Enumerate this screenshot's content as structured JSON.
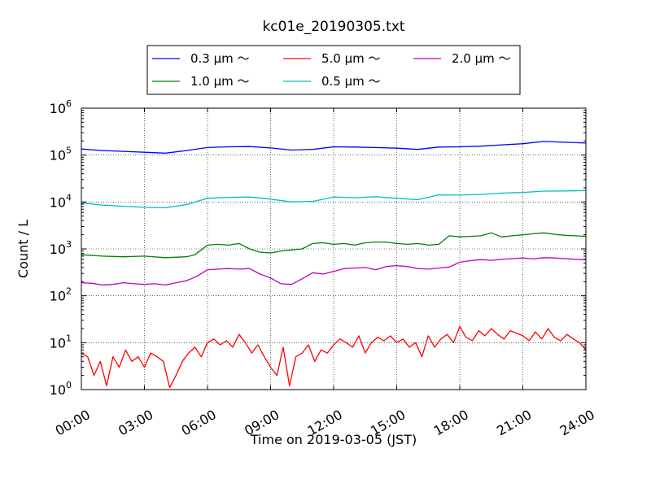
{
  "chart_data": {
    "type": "line",
    "title": "kc01e_20190305.txt",
    "xlabel": "Time on 2019-03-05 (JST)",
    "ylabel": "Count / L",
    "yscale": "log",
    "ylim": [
      1,
      1000000
    ],
    "xlim_hours": [
      0,
      24
    ],
    "x_ticks": [
      "00:00",
      "03:00",
      "06:00",
      "09:00",
      "12:00",
      "15:00",
      "18:00",
      "21:00",
      "24:00"
    ],
    "y_ticks": [
      {
        "base": "10",
        "exp": "0"
      },
      {
        "base": "10",
        "exp": "1"
      },
      {
        "base": "10",
        "exp": "2"
      },
      {
        "base": "10",
        "exp": "3"
      },
      {
        "base": "10",
        "exp": "4"
      },
      {
        "base": "10",
        "exp": "5"
      },
      {
        "base": "10",
        "exp": "6"
      }
    ],
    "grid": true,
    "legend_position": "top-center",
    "legend": [
      {
        "label": "0.3 μm ～",
        "color": "#0000ff"
      },
      {
        "label": "1.0 μm ～",
        "color": "#008000"
      },
      {
        "label": "5.0 μm ～",
        "color": "#ff0000"
      },
      {
        "label": "0.5 μm ～",
        "color": "#00bfbf"
      },
      {
        "label": "2.0 μm ～",
        "color": "#bf00bf"
      }
    ],
    "series": [
      {
        "name": "0.3 μm ～",
        "color": "#0000ff",
        "x": [
          0,
          1,
          2,
          3,
          4,
          5,
          6,
          7,
          8,
          9,
          10,
          11,
          12,
          13,
          14,
          15,
          16,
          17,
          18,
          19,
          20,
          21,
          22,
          23,
          24
        ],
        "y": [
          135000,
          125000,
          120000,
          115000,
          110000,
          125000,
          145000,
          150000,
          152000,
          142000,
          128000,
          132000,
          150000,
          148000,
          145000,
          140000,
          132000,
          148000,
          150000,
          155000,
          165000,
          175000,
          195000,
          188000,
          180000
        ]
      },
      {
        "name": "0.5 μm ～",
        "color": "#00bfbf",
        "x": [
          0,
          1,
          2,
          3,
          4,
          5,
          6,
          7,
          8,
          9,
          10,
          11,
          12,
          13,
          14,
          15,
          16,
          17,
          18,
          19,
          20,
          21,
          22,
          23,
          24
        ],
        "y": [
          9500,
          8600,
          8100,
          7700,
          7500,
          8800,
          12000,
          12500,
          12800,
          11500,
          10000,
          10300,
          12800,
          12300,
          13000,
          12000,
          11200,
          14200,
          14000,
          14500,
          15500,
          16000,
          17000,
          17200,
          17500
        ]
      },
      {
        "name": "1.0 μm ～",
        "color": "#008000",
        "x": [
          0,
          1,
          2,
          3,
          4,
          5,
          5.4,
          6,
          6.5,
          7,
          7.5,
          8,
          8.5,
          9,
          9.5,
          10,
          10.5,
          11,
          11.5,
          12,
          12.5,
          13,
          13.5,
          14,
          14.5,
          15,
          15.5,
          16,
          16.5,
          17,
          17.5,
          18,
          18.5,
          19,
          19.5,
          20,
          20.5,
          21,
          21.5,
          22,
          22.5,
          23,
          23.5,
          24
        ],
        "y": [
          750,
          700,
          680,
          700,
          650,
          680,
          750,
          1200,
          1250,
          1200,
          1300,
          1000,
          850,
          820,
          900,
          950,
          1000,
          1300,
          1350,
          1250,
          1300,
          1200,
          1350,
          1400,
          1400,
          1300,
          1250,
          1300,
          1200,
          1250,
          1900,
          1800,
          1850,
          1900,
          2200,
          1800,
          1900,
          2000,
          2100,
          2200,
          2050,
          1950,
          1900,
          1850
        ]
      },
      {
        "name": "2.0 μm ～",
        "color": "#bf00bf",
        "x": [
          0,
          0.5,
          1,
          1.5,
          2,
          2.5,
          3,
          3.5,
          4,
          4.5,
          5,
          5.5,
          6,
          6.5,
          7,
          7.5,
          8,
          8.5,
          9,
          9.5,
          10,
          10.5,
          11,
          11.5,
          12,
          12.5,
          13,
          13.5,
          14,
          14.5,
          15,
          15.5,
          16,
          16.5,
          17,
          17.5,
          18,
          18.5,
          19,
          19.5,
          20,
          20.5,
          21,
          21.5,
          22,
          22.5,
          23,
          23.5,
          24
        ],
        "y": [
          190,
          185,
          170,
          175,
          190,
          180,
          175,
          180,
          170,
          190,
          210,
          260,
          360,
          370,
          380,
          370,
          380,
          290,
          240,
          180,
          175,
          230,
          310,
          290,
          330,
          380,
          390,
          400,
          360,
          420,
          440,
          420,
          380,
          370,
          390,
          410,
          520,
          560,
          590,
          570,
          600,
          620,
          640,
          610,
          650,
          640,
          620,
          600,
          590
        ]
      },
      {
        "name": "5.0 μm ～",
        "color": "#ff0000",
        "x": [
          0,
          0.3,
          0.6,
          0.9,
          1.2,
          1.5,
          1.8,
          2.1,
          2.4,
          2.7,
          3,
          3.3,
          3.6,
          3.9,
          4.2,
          4.5,
          4.8,
          5.1,
          5.4,
          5.7,
          6,
          6.3,
          6.6,
          6.9,
          7.2,
          7.5,
          7.8,
          8.1,
          8.4,
          8.7,
          9,
          9.3,
          9.6,
          9.9,
          10.2,
          10.5,
          10.8,
          11.1,
          11.4,
          11.7,
          12,
          12.3,
          12.6,
          12.9,
          13.2,
          13.5,
          13.8,
          14.1,
          14.4,
          14.7,
          15,
          15.3,
          15.6,
          15.9,
          16.2,
          16.5,
          16.8,
          17.1,
          17.4,
          17.7,
          18,
          18.3,
          18.6,
          18.9,
          19.2,
          19.5,
          19.8,
          20.1,
          20.4,
          20.7,
          21,
          21.3,
          21.6,
          21.9,
          22.2,
          22.5,
          22.8,
          23.1,
          23.4,
          23.7,
          24
        ],
        "y": [
          6,
          5,
          2,
          4,
          1.2,
          5,
          3,
          7,
          4,
          5,
          3,
          6,
          5,
          4,
          1.1,
          2,
          4,
          6,
          8,
          5,
          10,
          12,
          9,
          11,
          8,
          15,
          10,
          6,
          9,
          5,
          3,
          2,
          8,
          1.2,
          5,
          6,
          9,
          4,
          7,
          6,
          9,
          12,
          10,
          8,
          14,
          6,
          10,
          13,
          11,
          14,
          10,
          12,
          8,
          10,
          5,
          14,
          8,
          12,
          15,
          10,
          22,
          13,
          11,
          18,
          14,
          20,
          15,
          12,
          18,
          16,
          14,
          11,
          17,
          12,
          20,
          13,
          11,
          15,
          12,
          10,
          7
        ]
      }
    ]
  }
}
